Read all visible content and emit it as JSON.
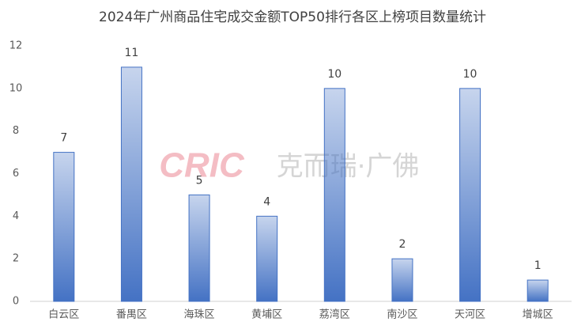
{
  "chart_data": {
    "type": "bar",
    "title": "2024年广州商品住宅成交金额TOP50排行各区上榜项目数量统计",
    "categories": [
      "白云区",
      "番禺区",
      "海珠区",
      "黄埔区",
      "荔湾区",
      "南沙区",
      "天河区",
      "增城区"
    ],
    "values": [
      7,
      11,
      5,
      4,
      10,
      2,
      10,
      1
    ],
    "color": "#4472c4",
    "ylim": [
      0,
      12
    ],
    "yticks": [
      0,
      2,
      4,
      6,
      8,
      10,
      12
    ],
    "grid": false,
    "watermark": {
      "logo": "CRIC",
      "text": "克而瑞·广佛"
    }
  }
}
